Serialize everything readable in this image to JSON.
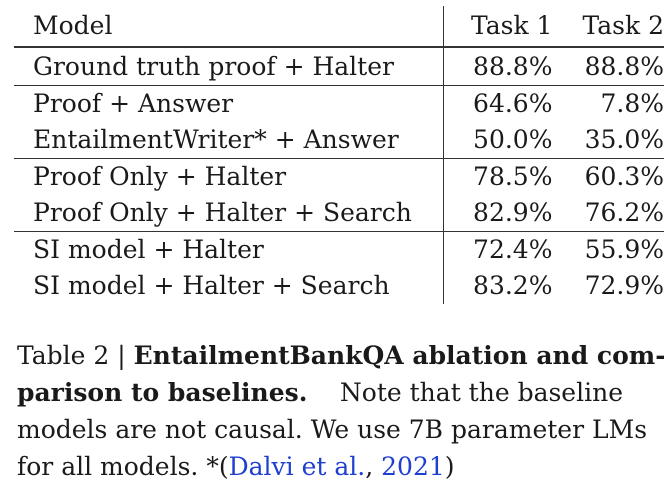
{
  "table": {
    "headers": {
      "model": "Model",
      "task1": "Task 1",
      "task2": "Task 2"
    },
    "groups": [
      {
        "rows": [
          {
            "model": "Ground truth proof + Halter",
            "task1": "88.8%",
            "task2": "88.8%",
            "task1_bold": false,
            "task2_bold": false
          }
        ]
      },
      {
        "rows": [
          {
            "model": "Proof + Answer",
            "task1": "64.6%",
            "task2": "7.8%",
            "task1_bold": false,
            "task2_bold": false
          },
          {
            "model": "EntailmentWriter* + Answer",
            "task1": "50.0%",
            "task2": "35.0%",
            "task1_bold": false,
            "task2_bold": false
          }
        ]
      },
      {
        "rows": [
          {
            "model": "Proof Only + Halter",
            "task1": "78.5%",
            "task2": "60.3%",
            "task1_bold": false,
            "task2_bold": false
          },
          {
            "model": "Proof Only + Halter + Search",
            "task1": "82.9%",
            "task2": "76.2%",
            "task1_bold": false,
            "task2_bold": true
          }
        ]
      },
      {
        "rows": [
          {
            "model": "SI model + Halter",
            "task1": "72.4%",
            "task2": "55.9%",
            "task1_bold": false,
            "task2_bold": false
          },
          {
            "model": "SI model + Halter + Search",
            "task1": "83.2%",
            "task2": "72.9%",
            "task1_bold": true,
            "task2_bold": false
          }
        ]
      }
    ]
  },
  "caption": {
    "label": "Table 2 |",
    "bold_title_line1": "EntailmentBankQA ablation and com-",
    "bold_title_line2": "parison to baselines.",
    "line2_rest": "Note that the baseline",
    "line3": "models are not causal. We use 7B parameter LMs",
    "line4_prefix": "for all models. *(",
    "citation_authors": "Dalvi et al.",
    "citation_sep": ", ",
    "citation_year": "2021",
    "line4_suffix": ")"
  }
}
